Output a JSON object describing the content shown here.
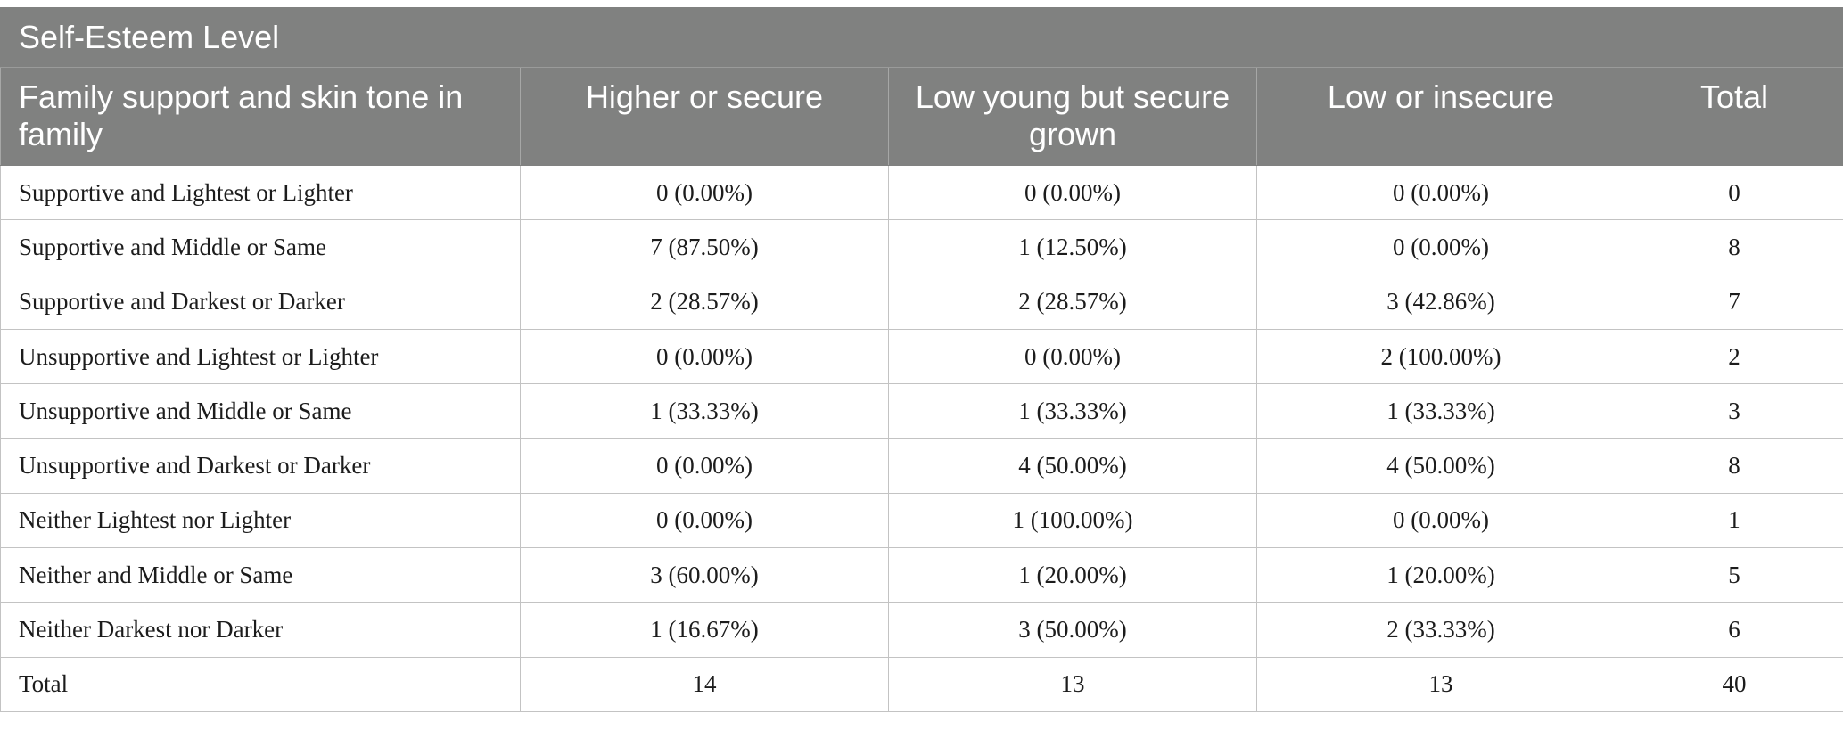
{
  "table": {
    "caption": "Self-Esteem Level",
    "headers": [
      "Family support and skin tone in family",
      "Higher or secure",
      "Low young but secure grown",
      "Low or insecure",
      "Total"
    ],
    "rows": [
      [
        "Supportive and Lightest or Lighter",
        "0 (0.00%)",
        "0 (0.00%)",
        "0 (0.00%)",
        "0"
      ],
      [
        "Supportive and Middle or Same",
        "7 (87.50%)",
        "1 (12.50%)",
        "0 (0.00%)",
        "8"
      ],
      [
        "Supportive and Darkest or Darker",
        "2 (28.57%)",
        "2 (28.57%)",
        "3 (42.86%)",
        "7"
      ],
      [
        "Unsupportive and Lightest or Lighter",
        "0 (0.00%)",
        "0 (0.00%)",
        "2 (100.00%)",
        "2"
      ],
      [
        "Unsupportive and Middle or Same",
        "1 (33.33%)",
        "1 (33.33%)",
        "1 (33.33%)",
        "3"
      ],
      [
        "Unsupportive and Darkest or Darker",
        "0 (0.00%)",
        "4 (50.00%)",
        "4 (50.00%)",
        "8"
      ],
      [
        "Neither Lightest nor Lighter",
        "0 (0.00%)",
        "1 (100.00%)",
        "0 (0.00%)",
        "1"
      ],
      [
        "Neither and Middle or Same",
        "3 (60.00%)",
        "1 (20.00%)",
        "1 (20.00%)",
        "5"
      ],
      [
        "Neither Darkest nor Darker",
        "1 (16.67%)",
        "3 (50.00%)",
        "2 (33.33%)",
        "6"
      ],
      [
        "Total",
        "14",
        "13",
        "13",
        "40"
      ]
    ]
  },
  "colors": {
    "header_bg": "#808180",
    "header_text": "#ffffff",
    "grid_line": "#c3c3c3",
    "body_text": "#1c1c1c"
  }
}
